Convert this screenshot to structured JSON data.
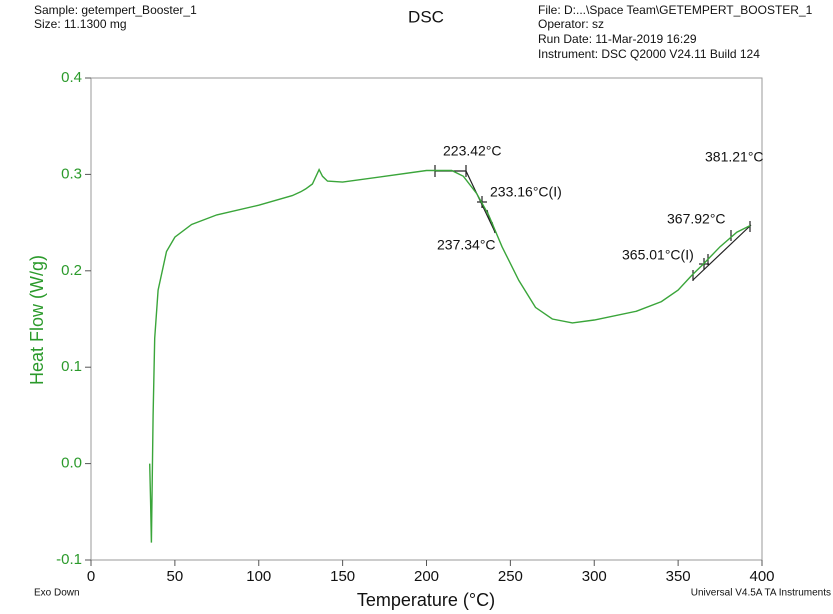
{
  "header": {
    "sample": "Sample: getempert_Booster_1",
    "size": "Size:  11.1300 mg",
    "title": "DSC",
    "file": "File: D:...\\Space Team\\GETEMPERT_BOOSTER_1",
    "operator": "Operator: sz",
    "run_date": "Run Date: 11-Mar-2019 16:29",
    "instrument": "Instrument: DSC Q2000 V24.11 Build 124",
    "exo": "Exo Down",
    "software": "Universal V4.5A TA Instruments"
  },
  "chart_data": {
    "type": "line",
    "xlabel": "Temperature (°C)",
    "ylabel": "Heat Flow (W/g)",
    "color": "#3aa53a",
    "x": [
      35,
      35.5,
      36,
      37,
      38,
      40,
      45,
      50,
      60,
      75,
      100,
      120,
      125,
      128,
      132,
      136,
      138,
      141,
      150,
      175,
      200,
      215,
      222,
      230,
      237,
      245,
      255,
      265,
      275,
      287,
      300,
      325,
      340,
      350,
      358,
      365,
      375,
      385,
      393
    ],
    "values": [
      0.0,
      -0.04,
      -0.082,
      0.05,
      0.13,
      0.18,
      0.22,
      0.235,
      0.248,
      0.258,
      0.268,
      0.278,
      0.282,
      0.285,
      0.29,
      0.305,
      0.298,
      0.293,
      0.292,
      0.298,
      0.304,
      0.304,
      0.298,
      0.28,
      0.258,
      0.225,
      0.19,
      0.162,
      0.15,
      0.146,
      0.149,
      0.158,
      0.168,
      0.18,
      0.195,
      0.207,
      0.225,
      0.24,
      0.247
    ],
    "xlim": [
      0,
      400
    ],
    "ylim": [
      -0.1,
      0.4
    ],
    "xticks": [
      0,
      50,
      100,
      150,
      200,
      250,
      300,
      350,
      400
    ],
    "yticks": [
      -0.1,
      {
        "value": 0,
        "label": "0.0"
      },
      0.1,
      0.2,
      0.3,
      0.4
    ],
    "annotations": [
      "223.42°C",
      "233.16°C(I)",
      "237.34°C",
      "365.01°C(I)",
      "367.92°C",
      "381.21°C"
    ]
  }
}
